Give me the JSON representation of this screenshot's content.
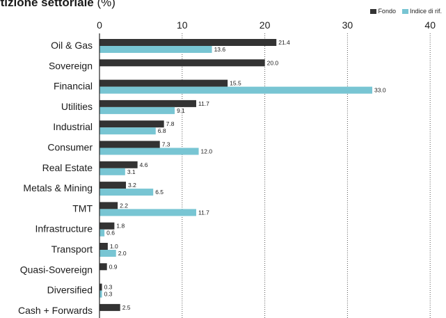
{
  "title": {
    "bold": "rtizione settoriale",
    "rest": " (%)"
  },
  "legend": {
    "fund": "Fondo",
    "benchmark": "Indice di rif."
  },
  "colors": {
    "fund": "#333333",
    "benchmark": "#78c5d3",
    "grid": "#555555"
  },
  "chart_data": {
    "type": "bar",
    "orientation": "horizontal",
    "xlim": [
      0,
      40
    ],
    "xticks": [
      0,
      10,
      20,
      30,
      40
    ],
    "grid": "vertical dotted",
    "legend_position": "top-right",
    "categories": [
      "Oil & Gas",
      "Sovereign",
      "Financial",
      "Utilities",
      "Industrial",
      "Consumer",
      "Real Estate",
      "Metals & Mining",
      "TMT",
      "Infrastructure",
      "Transport",
      "Quasi-Sovereign",
      "Diversified",
      "Cash + Forwards"
    ],
    "series": [
      {
        "name": "Fondo",
        "values": [
          21.4,
          20.0,
          15.5,
          11.7,
          7.8,
          7.3,
          4.6,
          3.2,
          2.2,
          1.8,
          1.0,
          0.9,
          0.3,
          2.5
        ]
      },
      {
        "name": "Indice di rif.",
        "values": [
          13.6,
          null,
          33.0,
          9.1,
          6.8,
          12.0,
          3.1,
          6.5,
          11.7,
          0.6,
          2.0,
          null,
          0.3,
          null
        ]
      }
    ]
  }
}
